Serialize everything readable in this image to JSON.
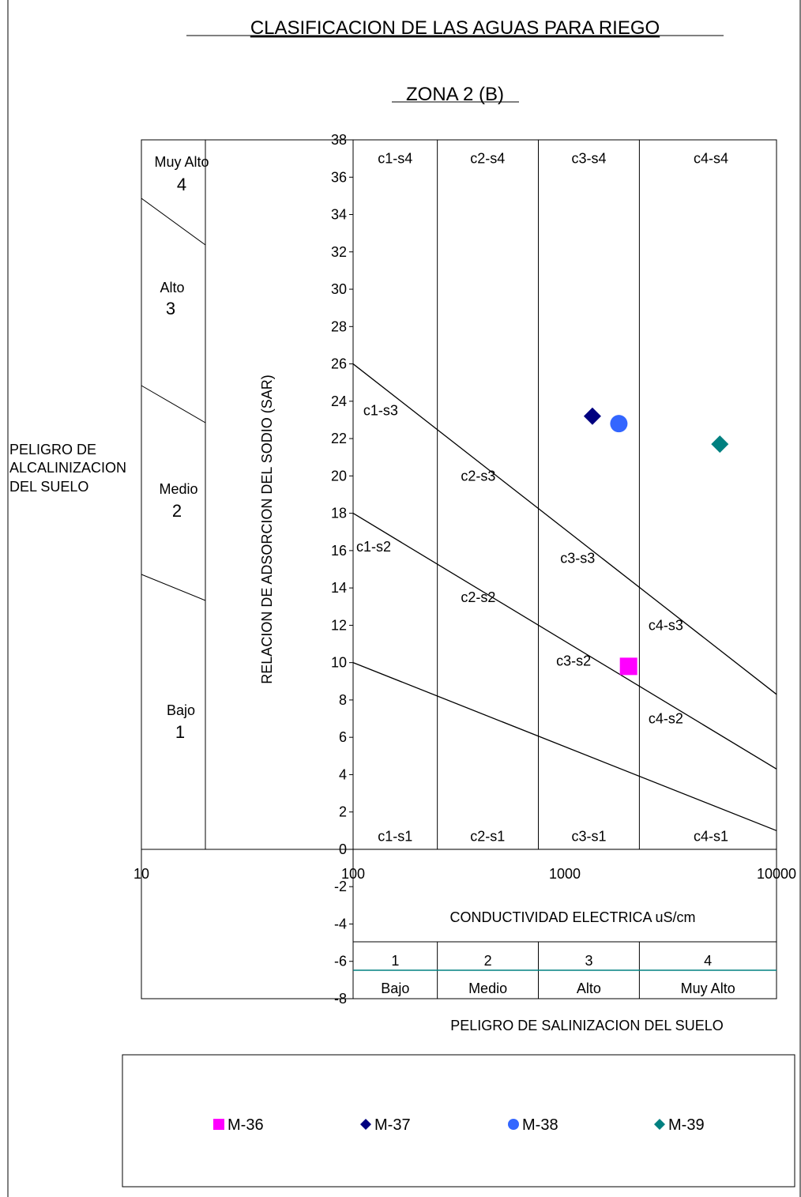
{
  "title": "CLASIFICACION DE LAS AGUAS PARA RIEGO",
  "subtitle": "ZONA 2 (B)",
  "chart_data": {
    "type": "scatter",
    "x_scale": "log",
    "xlim": [
      10,
      10000
    ],
    "ylim": [
      -8,
      38
    ],
    "x_ticks": [
      "10",
      "100",
      "1000",
      "10000"
    ],
    "y_ticks": [
      "-8",
      "-6",
      "-4",
      "-2",
      "0",
      "2",
      "4",
      "6",
      "8",
      "10",
      "12",
      "14",
      "16",
      "18",
      "20",
      "22",
      "24",
      "26",
      "28",
      "30",
      "32",
      "34",
      "36",
      "38"
    ],
    "xlabel": "CONDUCTIVIDAD ELECTRICA uS/cm",
    "ylabel": "RELACION DE ADSORCION DEL SODIO (SAR)",
    "x_axis_title": "PELIGRO DE SALINIZACION DEL SUELO",
    "y_axis_title": "PELIGRO DE ALCALINIZACION DEL SUELO",
    "class_boundaries_ec": [
      100,
      250,
      750,
      2250
    ],
    "sar_lines": [
      {
        "from": [
          100,
          10
        ],
        "to": [
          10000,
          1
        ]
      },
      {
        "from": [
          100,
          18
        ],
        "to": [
          10000,
          4.3
        ]
      },
      {
        "from": [
          100,
          26
        ],
        "to": [
          10000,
          8.3
        ]
      }
    ],
    "zone_labels": [
      {
        "text": "c1-s4",
        "x": 158,
        "y": 37
      },
      {
        "text": "c2-s4",
        "x": 432,
        "y": 37
      },
      {
        "text": "c3-s4",
        "x": 1300,
        "y": 37
      },
      {
        "text": "c4-s4",
        "x": 4900,
        "y": 37
      },
      {
        "text": "c1-s3",
        "x": 135,
        "y": 23.5
      },
      {
        "text": "c2-s3",
        "x": 390,
        "y": 20
      },
      {
        "text": "c3-s3",
        "x": 1150,
        "y": 15.6
      },
      {
        "text": "c4-s3",
        "x": 3000,
        "y": 12
      },
      {
        "text": "c1-s2",
        "x": 125,
        "y": 16.2
      },
      {
        "text": "c2-s2",
        "x": 390,
        "y": 13.5
      },
      {
        "text": "c3-s2",
        "x": 1100,
        "y": 10.1
      },
      {
        "text": "c4-s2",
        "x": 3000,
        "y": 7
      },
      {
        "text": "c1-s1",
        "x": 158,
        "y": 0.7
      },
      {
        "text": "c2-s1",
        "x": 432,
        "y": 0.7
      },
      {
        "text": "c3-s1",
        "x": 1300,
        "y": 0.7
      },
      {
        "text": "c4-s1",
        "x": 4900,
        "y": 0.7
      }
    ],
    "salinity_classes": [
      {
        "number": "1",
        "label": "Bajo"
      },
      {
        "number": "2",
        "label": "Medio"
      },
      {
        "number": "3",
        "label": "Alto"
      },
      {
        "number": "4",
        "label": "Muy Alto"
      }
    ],
    "alkalinity_classes": [
      {
        "label": "Muy Alto",
        "number": "4"
      },
      {
        "label": "Alto",
        "number": "3"
      },
      {
        "label": "Medio",
        "number": "2"
      },
      {
        "label": "Bajo",
        "number": "1"
      }
    ],
    "series": [
      {
        "name": "M-36",
        "marker": "square",
        "color": "#ff00ff",
        "x": 2000,
        "y": 9.8
      },
      {
        "name": "M-37",
        "marker": "diamond",
        "color": "#000080",
        "x": 1350,
        "y": 23.2
      },
      {
        "name": "M-38",
        "marker": "circle",
        "color": "#3366ff",
        "x": 1800,
        "y": 22.8
      },
      {
        "name": "M-39",
        "marker": "diamond",
        "color": "#008080",
        "x": 5400,
        "y": 21.7
      }
    ],
    "legend_position": "bottom"
  }
}
